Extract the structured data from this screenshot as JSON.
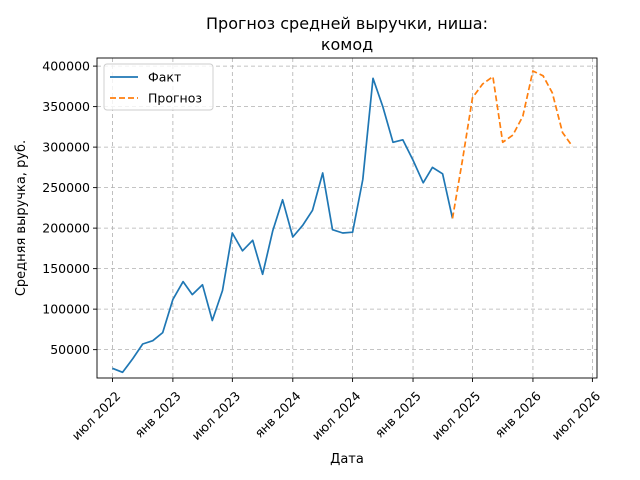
{
  "chart_data": {
    "type": "line",
    "title": "Прогноз средней выручки, ниша:\nкомод",
    "xlabel": "Дата",
    "ylabel": "Средняя выручка, руб.",
    "x_type": "date",
    "xlim": [
      "2022-05-15",
      "2026-07-15"
    ],
    "ylim": [
      15000,
      410000
    ],
    "grid": true,
    "legend_position": "top-left",
    "x_ticks": [
      {
        "date": "2022-07-01",
        "label": "июл 2022"
      },
      {
        "date": "2023-01-01",
        "label": "янв 2023"
      },
      {
        "date": "2023-07-01",
        "label": "июл 2023"
      },
      {
        "date": "2024-01-01",
        "label": "янв 2024"
      },
      {
        "date": "2024-07-01",
        "label": "июл 2024"
      },
      {
        "date": "2025-01-01",
        "label": "янв 2025"
      },
      {
        "date": "2025-07-01",
        "label": "июл 2025"
      },
      {
        "date": "2026-01-01",
        "label": "янв 2026"
      },
      {
        "date": "2026-07-01",
        "label": "июл 2026"
      }
    ],
    "y_ticks": [
      {
        "value": 50000,
        "label": "50000"
      },
      {
        "value": 100000,
        "label": "100000"
      },
      {
        "value": 150000,
        "label": "150000"
      },
      {
        "value": 200000,
        "label": "200000"
      },
      {
        "value": 250000,
        "label": "250000"
      },
      {
        "value": 300000,
        "label": "300000"
      },
      {
        "value": 350000,
        "label": "350000"
      },
      {
        "value": 400000,
        "label": "400000"
      }
    ],
    "series": [
      {
        "name": "Факт",
        "color": "#1f77b4",
        "style": "solid",
        "x": [
          "2022-07-01",
          "2022-08-01",
          "2022-09-01",
          "2022-10-01",
          "2022-11-01",
          "2022-12-01",
          "2023-01-01",
          "2023-02-01",
          "2023-03-01",
          "2023-04-01",
          "2023-05-01",
          "2023-06-01",
          "2023-07-01",
          "2023-08-01",
          "2023-09-01",
          "2023-10-01",
          "2023-11-01",
          "2023-12-01",
          "2024-01-01",
          "2024-02-01",
          "2024-03-01",
          "2024-04-01",
          "2024-05-01",
          "2024-06-01",
          "2024-07-01",
          "2024-08-01",
          "2024-09-01",
          "2024-10-01",
          "2024-11-01",
          "2024-12-01",
          "2025-01-01",
          "2025-02-01",
          "2025-03-01",
          "2025-04-01",
          "2025-05-01"
        ],
        "values": [
          27000,
          22000,
          39000,
          57000,
          61000,
          71000,
          112000,
          134000,
          118000,
          130000,
          86000,
          123000,
          194000,
          172000,
          185000,
          143000,
          197000,
          235000,
          189000,
          204000,
          222000,
          268000,
          198000,
          194000,
          195000,
          260000,
          385000,
          350000,
          306000,
          309000,
          284000,
          256000,
          275000,
          267000,
          212000
        ]
      },
      {
        "name": "Прогноз",
        "color": "#ff7f0e",
        "style": "dashed",
        "x": [
          "2025-05-01",
          "2025-06-01",
          "2025-07-01",
          "2025-08-01",
          "2025-09-01",
          "2025-10-01",
          "2025-11-01",
          "2025-12-01",
          "2026-01-01",
          "2026-02-01",
          "2026-03-01",
          "2026-04-01",
          "2026-05-01"
        ],
        "values": [
          212000,
          285000,
          361000,
          378000,
          387000,
          306000,
          315000,
          338000,
          394000,
          388000,
          367000,
          318000,
          301000
        ]
      }
    ]
  }
}
